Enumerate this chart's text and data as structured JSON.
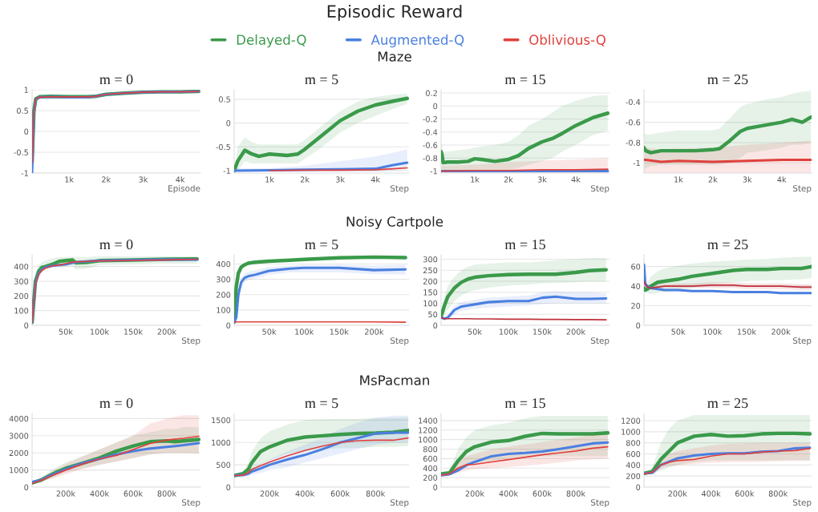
{
  "chart_data": [
    {
      "type": "line",
      "title": "m = 0",
      "legend": "top",
      "xlabel": "Episode",
      "grid": "y",
      "xlim": [
        0,
        4550
      ],
      "xticks": [
        {
          "value": 1000,
          "label": "1k"
        },
        {
          "value": 2000,
          "label": "2k"
        },
        {
          "value": 3000,
          "label": "3k"
        },
        {
          "value": 4000,
          "label": "4k"
        }
      ],
      "ylim": [
        -1,
        1
      ],
      "yticks": [
        -1,
        -0.5,
        0,
        0.5,
        1
      ],
      "x": [
        0,
        50,
        100,
        200,
        500,
        1000,
        1500,
        1700,
        2000,
        2500,
        3000,
        3500,
        4000,
        4500
      ],
      "series": [
        {
          "name": "Delayed-Q",
          "color": "#3a9a4a",
          "values": [
            -0.75,
            0.5,
            0.78,
            0.83,
            0.84,
            0.83,
            0.83,
            0.84,
            0.89,
            0.92,
            0.94,
            0.95,
            0.95,
            0.96
          ]
        },
        {
          "name": "Augmented-Q",
          "color": "#4a7fe0",
          "values": [
            -1,
            0.45,
            0.77,
            0.82,
            0.83,
            0.82,
            0.82,
            0.84,
            0.89,
            0.92,
            0.94,
            0.95,
            0.95,
            0.96
          ]
        },
        {
          "name": "Oblivious-Q",
          "color": "#e0413c",
          "values": [
            -0.75,
            0.48,
            0.78,
            0.82,
            0.83,
            0.83,
            0.83,
            0.84,
            0.89,
            0.92,
            0.94,
            0.95,
            0.95,
            0.96
          ]
        }
      ]
    },
    {
      "type": "line",
      "title": "m = 5",
      "subtitle": "Maze",
      "annotations": [
        "Episodic Reward"
      ],
      "xlabel": "Step",
      "grid": "y",
      "xlim": [
        0,
        4950
      ],
      "xticks": [
        {
          "value": 1000,
          "label": "1k"
        },
        {
          "value": 2000,
          "label": "2k"
        },
        {
          "value": 3000,
          "label": "3k"
        },
        {
          "value": 4000,
          "label": "4k"
        }
      ],
      "ylim": [
        -1.05,
        0.7
      ],
      "yticks": [
        -1,
        -0.5,
        0,
        0.5
      ],
      "series": [
        {
          "color": "#3a9a4a",
          "x": [
            0,
            100,
            300,
            500,
            700,
            1000,
            1500,
            1800,
            2000,
            2500,
            3000,
            3500,
            4000,
            4500,
            4900
          ],
          "values": [
            -1,
            -0.8,
            -0.57,
            -0.65,
            -0.7,
            -0.65,
            -0.68,
            -0.65,
            -0.55,
            -0.25,
            0.05,
            0.25,
            0.38,
            0.46,
            0.52
          ],
          "lower": [
            -1,
            -1,
            -0.8,
            -0.85,
            -0.85,
            -0.85,
            -0.85,
            -0.85,
            -0.75,
            -0.5,
            -0.2,
            0,
            0.15,
            0.3,
            0.4
          ],
          "upper": [
            -1,
            -0.5,
            -0.3,
            -0.4,
            -0.45,
            -0.45,
            -0.45,
            -0.45,
            -0.35,
            -0.05,
            0.25,
            0.45,
            0.55,
            0.6,
            0.62
          ]
        },
        {
          "color": "#4a7fe0",
          "x": [
            0,
            1000,
            2000,
            3000,
            4000,
            4500,
            4900
          ],
          "values": [
            -1,
            -0.99,
            -0.98,
            -0.97,
            -0.96,
            -0.88,
            -0.83
          ],
          "lower": [
            -1.02,
            -1.02,
            -1.02,
            -1.02,
            -1.02,
            -1,
            -0.98
          ],
          "upper": [
            -0.95,
            -0.95,
            -0.9,
            -0.8,
            -0.7,
            -0.62,
            -0.55
          ]
        },
        {
          "color": "#e0413c",
          "x": [
            1000,
            2000,
            3000,
            4000,
            4500,
            4900
          ],
          "values": [
            -1,
            -0.99,
            -0.99,
            -0.98,
            -0.96,
            -0.94
          ]
        }
      ]
    },
    {
      "type": "line",
      "title": "m = 15",
      "xlabel": "Step",
      "grid": "y",
      "xlim": [
        0,
        5000
      ],
      "xticks": [
        {
          "value": 1000,
          "label": "1k"
        },
        {
          "value": 2000,
          "label": "2k"
        },
        {
          "value": 3000,
          "label": "3k"
        },
        {
          "value": 4000,
          "label": "4k"
        }
      ],
      "ylim": [
        -1.03,
        0.25
      ],
      "yticks": [
        -1,
        -0.8,
        -0.6,
        -0.4,
        -0.2,
        0,
        0.2
      ],
      "series": [
        {
          "color": "#3a9a4a",
          "x": [
            0,
            30,
            60,
            200,
            500,
            800,
            1000,
            1200,
            1600,
            2000,
            2300,
            2600,
            3000,
            3300,
            3600,
            4000,
            4500,
            4950
          ],
          "values": [
            -0.7,
            -0.75,
            -0.87,
            -0.86,
            -0.86,
            -0.85,
            -0.81,
            -0.82,
            -0.85,
            -0.82,
            -0.76,
            -0.65,
            -0.55,
            -0.5,
            -0.42,
            -0.3,
            -0.18,
            -0.11
          ],
          "lower": [
            -1,
            -1,
            -1,
            -1,
            -1,
            -1,
            -0.98,
            -0.98,
            -1,
            -0.98,
            -0.95,
            -0.9,
            -0.85,
            -0.8,
            -0.7,
            -0.6,
            -0.45,
            -0.38
          ],
          "upper": [
            -0.55,
            -0.6,
            -0.7,
            -0.7,
            -0.68,
            -0.66,
            -0.64,
            -0.62,
            -0.6,
            -0.55,
            -0.45,
            -0.3,
            -0.2,
            -0.1,
            0,
            0.08,
            0.15,
            0.17
          ]
        },
        {
          "color": "#4a7fe0",
          "x": [
            0,
            1000,
            2000,
            3000,
            4000,
            4950
          ],
          "values": [
            -1,
            -1,
            -1,
            -1,
            -1,
            -1
          ]
        },
        {
          "color": "#e0413c",
          "x": [
            0,
            1000,
            2000,
            3000,
            4000,
            4950
          ],
          "values": [
            -1,
            -0.99,
            -0.99,
            -0.98,
            -0.98,
            -0.97
          ],
          "lower": [
            -1.03,
            -1.03,
            -1.03,
            -1.03,
            -1.03,
            -1.03
          ],
          "upper": [
            -0.92,
            -0.9,
            -0.86,
            -0.84,
            -0.82,
            -0.8
          ]
        }
      ]
    },
    {
      "type": "line",
      "title": "m = 25",
      "xlabel": "Step",
      "grid": "y",
      "xlim": [
        0,
        4870
      ],
      "xticks": [
        {
          "value": 1000,
          "label": "1k"
        },
        {
          "value": 2000,
          "label": "2k"
        },
        {
          "value": 3000,
          "label": "3k"
        },
        {
          "value": 4000,
          "label": "4k"
        }
      ],
      "ylim": [
        -1.1,
        -0.28
      ],
      "yticks": [
        -1,
        -0.8,
        -0.6,
        -0.4
      ],
      "series": [
        {
          "color": "#3a9a4a",
          "x": [
            0,
            50,
            200,
            500,
            1000,
            1500,
            2000,
            2200,
            2500,
            2800,
            3000,
            3500,
            4000,
            4300,
            4600,
            4850
          ],
          "values": [
            -0.85,
            -0.88,
            -0.9,
            -0.88,
            -0.88,
            -0.88,
            -0.87,
            -0.86,
            -0.78,
            -0.69,
            -0.66,
            -0.63,
            -0.6,
            -0.57,
            -0.6,
            -0.55
          ],
          "lower": [
            -1.05,
            -1.05,
            -1.03,
            -1.02,
            -1.02,
            -1.02,
            -1.02,
            -1.02,
            -1,
            -0.95,
            -0.9,
            -0.88,
            -0.85,
            -0.82,
            -0.82,
            -0.8
          ],
          "upper": [
            -0.7,
            -0.72,
            -0.72,
            -0.7,
            -0.68,
            -0.68,
            -0.68,
            -0.66,
            -0.56,
            -0.45,
            -0.42,
            -0.38,
            -0.35,
            -0.32,
            -0.3,
            -0.29
          ]
        },
        {
          "color": "#e0413c",
          "x": [
            0,
            50,
            500,
            1000,
            2000,
            3000,
            4000,
            4850
          ],
          "values": [
            -0.97,
            -0.97,
            -0.99,
            -0.98,
            -0.99,
            -0.98,
            -0.97,
            -0.97
          ],
          "lower": [
            -1.1,
            -1.1,
            -1.1,
            -1.1,
            -1.1,
            -1.1,
            -1.1,
            -1.1
          ],
          "upper": [
            -0.85,
            -0.85,
            -0.87,
            -0.86,
            -0.85,
            -0.82,
            -0.8,
            -0.78
          ]
        }
      ]
    },
    {
      "type": "line",
      "title": "m = 0",
      "xlabel": "Step",
      "grid": "y",
      "xlim": [
        0,
        250000
      ],
      "xticks": [
        {
          "value": 50000,
          "label": "50k"
        },
        {
          "value": 100000,
          "label": "100k"
        },
        {
          "value": 150000,
          "label": "150k"
        },
        {
          "value": 200000,
          "label": "200k"
        }
      ],
      "ylim": [
        0,
        480
      ],
      "yticks": [
        0,
        100,
        200,
        300,
        400
      ],
      "x": [
        0,
        5000,
        10000,
        15000,
        20000,
        30000,
        40000,
        50000,
        60000,
        65000,
        80000,
        100000,
        150000,
        200000,
        245000
      ],
      "series": [
        {
          "color": "#3a9a4a",
          "values": [
            20,
            300,
            370,
            395,
            400,
            415,
            435,
            440,
            445,
            425,
            428,
            440,
            445,
            450,
            452
          ],
          "lower": [
            15,
            250,
            330,
            360,
            375,
            395,
            400,
            400,
            405,
            380,
            385,
            410,
            415,
            420,
            420
          ],
          "upper": [
            25,
            350,
            410,
            430,
            440,
            455,
            465,
            465,
            468,
            465,
            465,
            470,
            470,
            470,
            470
          ]
        },
        {
          "color": "#4a7fe0",
          "values": [
            20,
            290,
            355,
            380,
            395,
            405,
            410,
            415,
            425,
            430,
            435,
            440,
            445,
            448,
            447
          ]
        },
        {
          "color": "#e0413c",
          "values": [
            20,
            280,
            350,
            375,
            390,
            405,
            410,
            420,
            430,
            432,
            435,
            438,
            442,
            445,
            450
          ]
        }
      ]
    },
    {
      "type": "line",
      "title": "m = 5",
      "subtitle": "Noisy Cartpole",
      "xlabel": "Step",
      "grid": "y",
      "xlim": [
        0,
        250000
      ],
      "xticks": [
        {
          "value": 50000,
          "label": "50k"
        },
        {
          "value": 100000,
          "label": "100k"
        },
        {
          "value": 150000,
          "label": "150k"
        },
        {
          "value": 200000,
          "label": "200k"
        }
      ],
      "ylim": [
        0,
        460
      ],
      "yticks": [
        0,
        100,
        200,
        300,
        400
      ],
      "x": [
        0,
        3000,
        6000,
        10000,
        15000,
        20000,
        30000,
        50000,
        80000,
        100000,
        150000,
        200000,
        245000
      ],
      "series": [
        {
          "color": "#3a9a4a",
          "values": [
            20,
            250,
            340,
            380,
            395,
            405,
            412,
            418,
            425,
            430,
            440,
            445,
            442
          ]
        },
        {
          "color": "#4a7fe0",
          "values": [
            20,
            50,
            200,
            280,
            310,
            320,
            330,
            355,
            370,
            375,
            375,
            360,
            365
          ],
          "lower": [
            20,
            40,
            170,
            250,
            280,
            295,
            305,
            330,
            345,
            345,
            345,
            335,
            330
          ],
          "upper": [
            20,
            60,
            230,
            310,
            340,
            350,
            360,
            380,
            390,
            395,
            395,
            390,
            395
          ]
        },
        {
          "color": "#e0413c",
          "values": [
            20,
            22,
            22,
            22,
            22,
            22,
            22,
            22,
            22,
            22,
            22,
            22,
            20
          ]
        }
      ]
    },
    {
      "type": "line",
      "title": "m = 15",
      "xlabel": "Step",
      "grid": "y",
      "xlim": [
        0,
        250000
      ],
      "xticks": [
        {
          "value": 50000,
          "label": "50k"
        },
        {
          "value": 100000,
          "label": "100k"
        },
        {
          "value": 150000,
          "label": "150k"
        },
        {
          "value": 200000,
          "label": "200k"
        }
      ],
      "ylim": [
        0,
        320
      ],
      "yticks": [
        0,
        50,
        100,
        150,
        200,
        250,
        300
      ],
      "x": [
        0,
        5000,
        10000,
        20000,
        30000,
        40000,
        50000,
        70000,
        100000,
        130000,
        150000,
        170000,
        200000,
        220000,
        245000
      ],
      "series": [
        {
          "color": "#3a9a4a",
          "values": [
            40,
            90,
            130,
            170,
            195,
            210,
            218,
            225,
            230,
            232,
            232,
            232,
            240,
            248,
            252
          ],
          "lower": [
            40,
            50,
            70,
            110,
            135,
            150,
            160,
            170,
            180,
            185,
            190,
            192,
            195,
            198,
            198
          ],
          "upper": [
            40,
            130,
            180,
            220,
            250,
            265,
            275,
            280,
            285,
            285,
            290,
            295,
            300,
            305,
            305
          ]
        },
        {
          "color": "#4a7fe0",
          "values": [
            35,
            30,
            35,
            70,
            85,
            90,
            95,
            105,
            110,
            110,
            125,
            130,
            120,
            120,
            122
          ],
          "lower": [
            35,
            28,
            30,
            50,
            65,
            70,
            75,
            80,
            85,
            90,
            95,
            100,
            100,
            100,
            100
          ],
          "upper": [
            40,
            35,
            45,
            90,
            105,
            110,
            115,
            125,
            130,
            135,
            150,
            155,
            150,
            150,
            145
          ]
        },
        {
          "color": "#c0303a",
          "values": [
            35,
            30,
            30,
            30,
            30,
            30,
            29,
            29,
            28,
            28,
            27,
            27,
            26,
            26,
            25
          ]
        }
      ]
    },
    {
      "type": "line",
      "title": "m = 25",
      "xlabel": "Step",
      "grid": "y",
      "xlim": [
        0,
        245000
      ],
      "xticks": [
        {
          "value": 50000,
          "label": "50k"
        },
        {
          "value": 100000,
          "label": "100k"
        },
        {
          "value": 150000,
          "label": "150k"
        },
        {
          "value": 200000,
          "label": "200k"
        }
      ],
      "ylim": [
        0,
        72
      ],
      "yticks": [
        0,
        20,
        40,
        60
      ],
      "x": [
        0,
        2000,
        5000,
        10000,
        20000,
        30000,
        50000,
        70000,
        100000,
        130000,
        150000,
        180000,
        200000,
        230000,
        245000
      ],
      "series": [
        {
          "color": "#3a9a4a",
          "values": [
            38,
            36,
            37,
            40,
            44,
            45,
            47,
            50,
            53,
            56,
            57,
            57,
            58,
            58,
            60
          ],
          "lower": [
            35,
            33,
            33,
            32,
            33,
            34,
            36,
            38,
            42,
            44,
            45,
            46,
            46,
            47,
            48
          ],
          "upper": [
            42,
            40,
            44,
            50,
            55,
            58,
            61,
            63,
            65,
            66,
            67,
            68,
            69,
            70,
            70
          ]
        },
        {
          "color": "#4a7fe0",
          "values": [
            62,
            42,
            40,
            38,
            37,
            36,
            36,
            35,
            35,
            34,
            34,
            34,
            33,
            33,
            33
          ]
        },
        {
          "color": "#c0303a",
          "values": [
            45,
            42,
            39,
            38,
            39,
            40,
            40,
            40,
            41,
            41,
            40,
            40,
            40,
            39,
            39
          ],
          "lower": [
            40,
            38,
            36,
            36,
            37,
            38,
            38,
            38,
            38,
            38,
            37,
            37,
            37,
            36,
            36
          ],
          "upper": [
            48,
            45,
            42,
            41,
            42,
            42,
            43,
            43,
            44,
            44,
            43,
            43,
            43,
            42,
            42
          ]
        }
      ]
    },
    {
      "type": "line",
      "title": "m = 0",
      "xlabel": "Step",
      "grid": "y",
      "xlim": [
        0,
        1000000
      ],
      "xticks": [
        {
          "value": 200000,
          "label": "200k"
        },
        {
          "value": 400000,
          "label": "400k"
        },
        {
          "value": 600000,
          "label": "600k"
        },
        {
          "value": 800000,
          "label": "800k"
        }
      ],
      "ylim": [
        0,
        4300
      ],
      "yticks": [
        0,
        1000,
        2000,
        3000,
        4000
      ],
      "x": [
        0,
        50000,
        100000,
        150000,
        200000,
        300000,
        400000,
        500000,
        600000,
        700000,
        800000,
        850000,
        900000,
        990000
      ],
      "series": [
        {
          "color": "#3a9a4a",
          "values": [
            250,
            400,
            650,
            900,
            1100,
            1400,
            1700,
            2100,
            2400,
            2650,
            2700,
            2650,
            2700,
            2780
          ],
          "lower": [
            200,
            300,
            450,
            650,
            850,
            1100,
            1300,
            1500,
            1700,
            1900,
            2000,
            2000,
            2000,
            2000
          ],
          "upper": [
            300,
            550,
            900,
            1200,
            1450,
            1800,
            2200,
            2600,
            3000,
            3200,
            3400,
            3400,
            3500,
            3500
          ]
        },
        {
          "color": "#4a7fe0",
          "values": [
            300,
            400,
            650,
            850,
            1050,
            1400,
            1650,
            1900,
            2100,
            2250,
            2350,
            2400,
            2450,
            2570
          ]
        },
        {
          "color": "#e0413c",
          "values": [
            220,
            380,
            600,
            800,
            1000,
            1350,
            1650,
            1850,
            2200,
            2550,
            2750,
            2800,
            2850,
            2970
          ],
          "lower": [
            200,
            300,
            450,
            600,
            750,
            1050,
            1300,
            1500,
            1700,
            1900,
            2000,
            2000,
            2000,
            1950
          ],
          "upper": [
            250,
            500,
            800,
            1100,
            1350,
            1800,
            2200,
            2600,
            3000,
            3700,
            4000,
            4100,
            4200,
            4200
          ]
        }
      ]
    },
    {
      "type": "line",
      "title": "m = 5",
      "subtitle": "MsPacman",
      "xlabel": "Step",
      "grid": "y",
      "xlim": [
        0,
        990000
      ],
      "xticks": [
        {
          "value": 200000,
          "label": "200k"
        },
        {
          "value": 400000,
          "label": "400k"
        },
        {
          "value": 600000,
          "label": "600k"
        },
        {
          "value": 800000,
          "label": "800k"
        }
      ],
      "ylim": [
        0,
        1650
      ],
      "yticks": [
        0,
        500,
        1000,
        1500
      ],
      "x": [
        0,
        50000,
        80000,
        100000,
        150000,
        200000,
        300000,
        400000,
        500000,
        600000,
        700000,
        800000,
        900000,
        985000
      ],
      "series": [
        {
          "color": "#3a9a4a",
          "values": [
            260,
            300,
            400,
            550,
            800,
            900,
            1050,
            1120,
            1150,
            1180,
            1200,
            1210,
            1230,
            1270
          ],
          "lower": [
            220,
            250,
            280,
            350,
            500,
            600,
            750,
            820,
            850,
            870,
            880,
            900,
            900,
            920
          ],
          "upper": [
            300,
            350,
            550,
            800,
            1100,
            1250,
            1400,
            1500,
            1520,
            1530,
            1530,
            1550,
            1550,
            1560
          ]
        },
        {
          "color": "#4a7fe0",
          "values": [
            270,
            270,
            300,
            350,
            420,
            500,
            620,
            720,
            850,
            1000,
            1100,
            1200,
            1220,
            1220
          ],
          "lower": [
            220,
            230,
            250,
            280,
            320,
            380,
            450,
            550,
            650,
            750,
            850,
            950,
            1000,
            1000
          ],
          "upper": [
            300,
            320,
            360,
            420,
            520,
            620,
            800,
            950,
            1100,
            1300,
            1450,
            1550,
            1600,
            1600
          ]
        },
        {
          "color": "#e0413c",
          "values": [
            260,
            270,
            320,
            400,
            480,
            560,
            700,
            820,
            920,
            1000,
            1040,
            1050,
            1050,
            1100
          ]
        }
      ]
    },
    {
      "type": "line",
      "title": "m = 15",
      "xlabel": "Step",
      "grid": "y",
      "xlim": [
        0,
        1000000
      ],
      "xticks": [
        {
          "value": 200000,
          "label": "200k"
        },
        {
          "value": 400000,
          "label": "400k"
        },
        {
          "value": 600000,
          "label": "600k"
        },
        {
          "value": 800000,
          "label": "800k"
        }
      ],
      "ylim": [
        0,
        1550
      ],
      "yticks": [
        0,
        200,
        400,
        600,
        800,
        1000,
        1200,
        1400
      ],
      "x": [
        0,
        50000,
        100000,
        150000,
        200000,
        300000,
        400000,
        500000,
        600000,
        700000,
        800000,
        900000,
        990000
      ],
      "series": [
        {
          "color": "#3a9a4a",
          "values": [
            280,
            300,
            550,
            750,
            850,
            950,
            980,
            1070,
            1130,
            1120,
            1120,
            1120,
            1140
          ],
          "lower": [
            250,
            260,
            350,
            450,
            500,
            550,
            600,
            650,
            650,
            650,
            650,
            650,
            650
          ],
          "upper": [
            320,
            350,
            800,
            1050,
            1200,
            1300,
            1350,
            1450,
            1500,
            1500,
            1500,
            1500,
            1500
          ]
        },
        {
          "color": "#4a7fe0",
          "values": [
            250,
            270,
            350,
            460,
            530,
            650,
            700,
            720,
            750,
            800,
            860,
            920,
            940
          ]
        },
        {
          "color": "#e0413c",
          "values": [
            250,
            280,
            400,
            470,
            480,
            530,
            580,
            630,
            680,
            720,
            760,
            820,
            850
          ],
          "lower": [
            240,
            250,
            300,
            350,
            380,
            400,
            420,
            450,
            480,
            520,
            560,
            590,
            600
          ],
          "upper": [
            280,
            350,
            550,
            650,
            700,
            800,
            850,
            900,
            950,
            1000,
            1050,
            1100,
            1150
          ]
        }
      ]
    },
    {
      "type": "line",
      "title": "m = 25",
      "xlabel": "Step",
      "grid": "y",
      "xlim": [
        0,
        1000000
      ],
      "xticks": [
        {
          "value": 200000,
          "label": "200k"
        },
        {
          "value": 400000,
          "label": "400k"
        },
        {
          "value": 600000,
          "label": "600k"
        },
        {
          "value": 800000,
          "label": "800k"
        }
      ],
      "ylim": [
        0,
        1330
      ],
      "yticks": [
        0,
        200,
        400,
        600,
        800,
        1000,
        1200
      ],
      "x": [
        0,
        50000,
        100000,
        150000,
        200000,
        300000,
        400000,
        500000,
        600000,
        700000,
        800000,
        900000,
        990000
      ],
      "series": [
        {
          "color": "#3a9a4a",
          "values": [
            250,
            280,
            500,
            650,
            800,
            920,
            950,
            920,
            930,
            960,
            970,
            970,
            960
          ],
          "lower": [
            220,
            240,
            300,
            350,
            400,
            450,
            480,
            480,
            480,
            480,
            480,
            480,
            480
          ],
          "upper": [
            280,
            350,
            800,
            1050,
            1200,
            1300,
            1300,
            1300,
            1300,
            1300,
            1300,
            1300,
            1300
          ]
        },
        {
          "color": "#4a7fe0",
          "values": [
            250,
            260,
            400,
            460,
            520,
            570,
            600,
            610,
            610,
            640,
            650,
            700,
            710
          ]
        },
        {
          "color": "#e0413c",
          "values": [
            240,
            270,
            400,
            450,
            480,
            500,
            560,
            600,
            600,
            630,
            650,
            660,
            700
          ],
          "lower": [
            220,
            240,
            330,
            380,
            400,
            420,
            440,
            450,
            450,
            460,
            470,
            480,
            480
          ],
          "upper": [
            280,
            320,
            500,
            600,
            650,
            700,
            750,
            780,
            790,
            800,
            800,
            800,
            800
          ]
        }
      ]
    }
  ]
}
